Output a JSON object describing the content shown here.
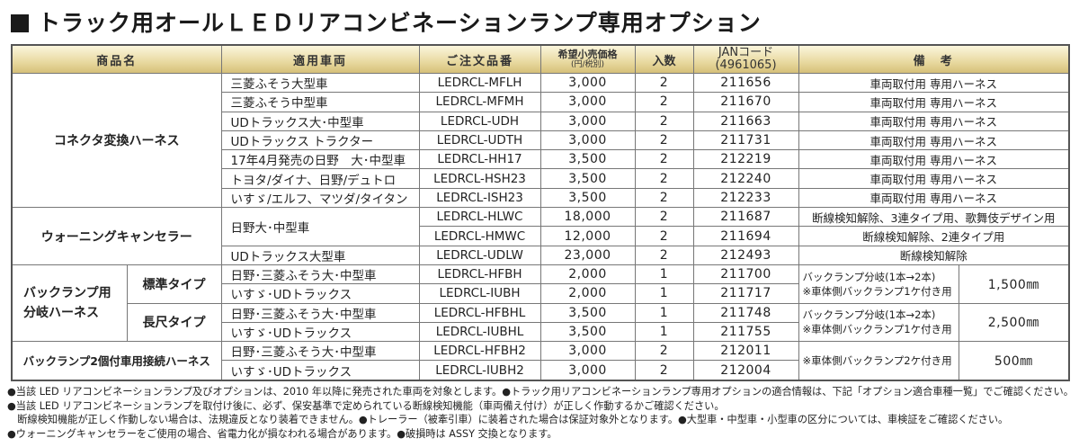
{
  "title": "トラック用オールＬＥＤリアコンビネーションランプ専用オプション",
  "headers": {
    "product": "商品名",
    "vehicle": "適用車両",
    "order": "ご注文品番",
    "price": "希望小売価格",
    "price_sub": "(円/税別)",
    "qty": "入数",
    "jan": "JANコード",
    "jan_sub": "(4961065)",
    "note": "備　考"
  },
  "products": [
    "コネクタ変換ハーネス",
    "ウォーニングキャンセラー",
    "バックランプ用\n分岐ハーネス",
    "バックランプ2個付車用接続ハーネス"
  ],
  "subtypes": [
    "標準タイプ",
    "長尺タイプ"
  ],
  "rows": [
    {
      "vehicle": "三菱ふそう大型車",
      "order": "LEDRCL-MFLH",
      "price": "3,000",
      "qty": "2",
      "jan": "211656",
      "note": "車両取付用 専用ハーネス"
    },
    {
      "vehicle": "三菱ふそう中型車",
      "order": "LEDRCL-MFMH",
      "price": "3,000",
      "qty": "2",
      "jan": "211670",
      "note": "車両取付用 専用ハーネス"
    },
    {
      "vehicle": "UDトラックス大･中型車",
      "order": "LEDRCL-UDH",
      "price": "3,000",
      "qty": "2",
      "jan": "211663",
      "note": "車両取付用 専用ハーネス"
    },
    {
      "vehicle": "UDトラックス トラクター",
      "order": "LEDRCL-UDTH",
      "price": "3,000",
      "qty": "2",
      "jan": "211731",
      "note": "車両取付用 専用ハーネス"
    },
    {
      "vehicle": "17年4月発売の日野　大･中型車",
      "order": "LEDRCL-HH17",
      "price": "3,500",
      "qty": "2",
      "jan": "212219",
      "note": "車両取付用 専用ハーネス"
    },
    {
      "vehicle": "トヨタ/ダイナ、日野/デュトロ",
      "order": "LEDRCL-HSH23",
      "price": "3,500",
      "qty": "2",
      "jan": "212240",
      "note": "車両取付用 専用ハーネス"
    },
    {
      "vehicle": "いすゞ/エルフ、マツダ/タイタン",
      "order": "LEDRCL-ISH23",
      "price": "3,500",
      "qty": "2",
      "jan": "212233",
      "note": "車両取付用 専用ハーネス"
    },
    {
      "vehicle": "日野大･中型車",
      "order": "LEDRCL-HLWC",
      "price": "18,000",
      "qty": "2",
      "jan": "211687",
      "note": "断線検知解除、3連タイプ用、歌舞伎デザイン用"
    },
    {
      "order": "LEDRCL-HMWC",
      "price": "12,000",
      "qty": "2",
      "jan": "211694",
      "note": "断線検知解除、2連タイプ用"
    },
    {
      "vehicle": "UDトラックス大型車",
      "order": "LEDRCL-UDLW",
      "price": "23,000",
      "qty": "2",
      "jan": "212493",
      "note": "断線検知解除"
    },
    {
      "vehicle": "日野･三菱ふそう大･中型車",
      "order": "LEDRCL-HFBH",
      "price": "2,000",
      "qty": "1",
      "jan": "211700",
      "note": "バックランプ分岐(1本→2本)\n※車体側バックランプ1ケ付き用",
      "length": "1,500㎜"
    },
    {
      "vehicle": "いすゞ･UDトラックス",
      "order": "LEDRCL-IUBH",
      "price": "2,000",
      "qty": "1",
      "jan": "211717"
    },
    {
      "vehicle": "日野･三菱ふそう大･中型車",
      "order": "LEDRCL-HFBHL",
      "price": "3,500",
      "qty": "1",
      "jan": "211748",
      "note": "バックランプ分岐(1本→2本)\n※車体側バックランプ1ケ付き用",
      "length": "2,500㎜"
    },
    {
      "vehicle": "いすゞ･UDトラックス",
      "order": "LEDRCL-IUBHL",
      "price": "3,500",
      "qty": "1",
      "jan": "211755"
    },
    {
      "vehicle": "日野･三菱ふそう大･中型車",
      "order": "LEDRCL-HFBH2",
      "price": "3,000",
      "qty": "2",
      "jan": "212011",
      "note": "※車体側バックランプ2ケ付き用",
      "length": "500㎜"
    },
    {
      "vehicle": "いすゞ･UDトラックス",
      "order": "LEDRCL-IUBH2",
      "price": "3,000",
      "qty": "2",
      "jan": "212004"
    }
  ],
  "notes": [
    "●当該 LED リアコンビネーションランプ及びオプションは、2010 年以降に発売された車両を対象とします。●トラック用リアコンビネーションランプ専用オプションの適合情報は、下記「オプション適合車種一覧」でご確認ください。",
    "●当該 LED リアコンビネーションランプを取付け後に、必ず、保安基準で定められている断線検知機能（車両備え付け）が正しく作動するかご確認ください。",
    "　断線検知機能が正しく作動しない場合は、法規違反となり装着できません。●トレーラー（被牽引車）に装着された場合は保証対象外となります。●大型車・中型車・小型車の区分については、車検証をご確認ください。",
    "●ウォーニングキャンセラーをご使用の場合、省電力化が損なわれる場合があります。●破損時は ASSY 交換となります。"
  ],
  "colors": {
    "header_gold": "#e8d9a0",
    "border": "#777777"
  }
}
